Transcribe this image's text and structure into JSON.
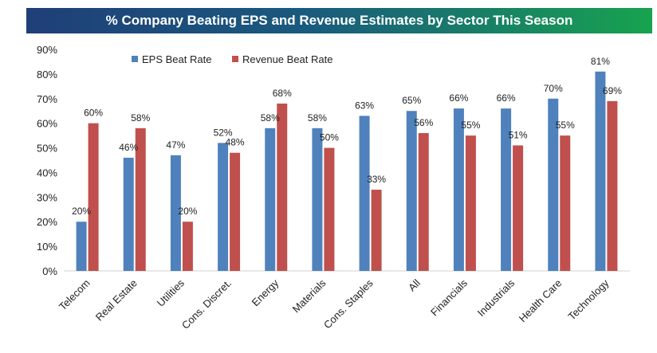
{
  "chart_data": {
    "type": "bar",
    "title": "% Company Beating EPS and Revenue Estimates by Sector This Season",
    "categories": [
      "Telecom",
      "Real Estate",
      "Utilities",
      "Cons. Discret.",
      "Energy",
      "Materials",
      "Cons. Staples",
      "All",
      "Financials",
      "Industrials",
      "Health Care",
      "Technology"
    ],
    "series": [
      {
        "name": "EPS Beat Rate",
        "color": "#4f81bd",
        "values": [
          20,
          46,
          47,
          52,
          58,
          58,
          63,
          65,
          66,
          66,
          70,
          81
        ],
        "labels": [
          "20%",
          "46%",
          "47%",
          "52%",
          "58%",
          "58%",
          "63%",
          "65%",
          "66%",
          "66%",
          "70%",
          "81%"
        ]
      },
      {
        "name": "Revenue Beat Rate",
        "color": "#c0504d",
        "values": [
          60,
          58,
          20,
          48,
          68,
          50,
          33,
          56,
          55,
          51,
          55,
          69
        ],
        "labels": [
          "60%",
          "58%",
          "20%",
          "48%",
          "68%",
          "50%",
          "33%",
          "56%",
          "55%",
          "51%",
          "55%",
          "69%"
        ]
      }
    ],
    "ylim": [
      0,
      90
    ],
    "yticks": [
      0,
      10,
      20,
      30,
      40,
      50,
      60,
      70,
      80,
      90
    ],
    "ytick_labels": [
      "0%",
      "10%",
      "20%",
      "30%",
      "40%",
      "50%",
      "60%",
      "70%",
      "80%",
      "90%"
    ],
    "legend_position": "top-left",
    "grid": false,
    "xlabel": "",
    "ylabel": ""
  }
}
